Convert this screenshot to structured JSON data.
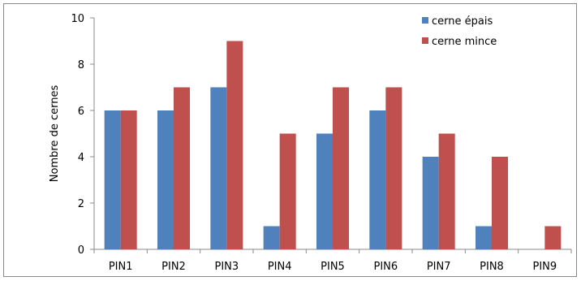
{
  "chart_data": {
    "type": "bar",
    "categories": [
      "PIN1",
      "PIN2",
      "PIN3",
      "PIN4",
      "PIN5",
      "PIN6",
      "PIN7",
      "PIN8",
      "PIN9"
    ],
    "series": [
      {
        "name": "cerne épais",
        "values": [
          6,
          6,
          7,
          1,
          5,
          6,
          4,
          1,
          0
        ],
        "color": "#4f81bd"
      },
      {
        "name": "cerne mince",
        "values": [
          6,
          7,
          9,
          5,
          7,
          7,
          5,
          4,
          1
        ],
        "color": "#c0504d"
      }
    ],
    "xlabel": "",
    "ylabel": "Nombre de cernes",
    "ylim": [
      0,
      10
    ],
    "yticks": [
      0,
      2,
      4,
      6,
      8,
      10
    ],
    "grid": false,
    "legend": "top-right"
  }
}
